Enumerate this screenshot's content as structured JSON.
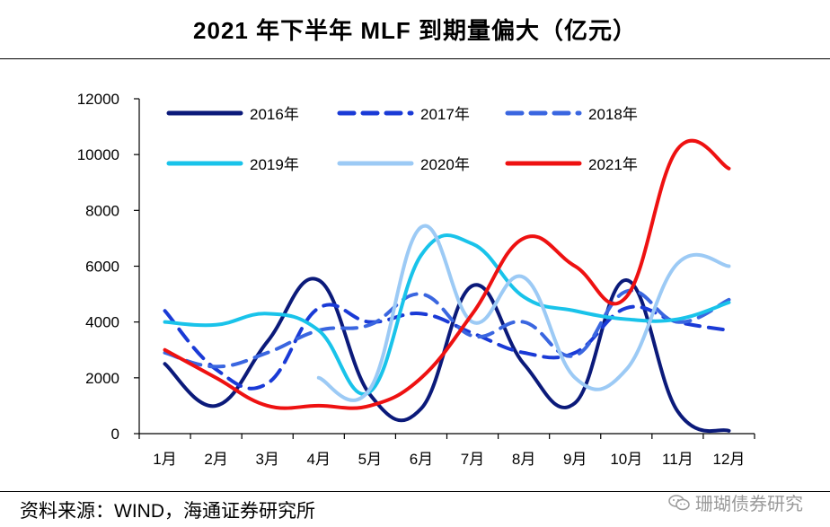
{
  "chart_data": {
    "type": "line",
    "title": "2021 年下半年 MLF 到期量偏大（亿元）",
    "xlabel": "",
    "ylabel": "",
    "categories": [
      "1月",
      "2月",
      "3月",
      "4月",
      "5月",
      "6月",
      "7月",
      "8月",
      "9月",
      "10月",
      "11月",
      "12月"
    ],
    "ylim": [
      0,
      12000
    ],
    "yticks": [
      0,
      2000,
      4000,
      6000,
      8000,
      10000,
      12000
    ],
    "grid": false,
    "legend_position": "top",
    "series": [
      {
        "name": "2016年",
        "color": "#0b1a7a",
        "dash": "solid",
        "values": [
          2500,
          1000,
          3300,
          5500,
          1400,
          900,
          5300,
          2500,
          1100,
          5500,
          800,
          100
        ]
      },
      {
        "name": "2017年",
        "color": "#1a3ad6",
        "dash": "dash",
        "values": [
          4400,
          2300,
          1800,
          4500,
          4000,
          4300,
          3600,
          2900,
          2900,
          4500,
          4000,
          3700
        ]
      },
      {
        "name": "2018年",
        "color": "#3a66e0",
        "dash": "dash",
        "values": [
          2900,
          2400,
          2900,
          3700,
          3900,
          5000,
          3500,
          4000,
          2800,
          5100,
          4000,
          4800
        ]
      },
      {
        "name": "2019年",
        "color": "#19c3ea",
        "dash": "solid",
        "values": [
          4000,
          3900,
          4300,
          3700,
          1500,
          6400,
          6800,
          4900,
          4400,
          4100,
          4100,
          4700
        ]
      },
      {
        "name": "2020年",
        "color": "#9ccaf5",
        "dash": "solid",
        "values": [
          null,
          null,
          null,
          2000,
          1600,
          7400,
          4000,
          5600,
          2000,
          2300,
          6100,
          6000
        ]
      },
      {
        "name": "2021年",
        "color": "#ee1111",
        "dash": "solid",
        "values": [
          3000,
          2000,
          1000,
          1000,
          1000,
          2000,
          4300,
          7000,
          6000,
          4900,
          10200,
          9500
        ]
      }
    ]
  },
  "footer": {
    "source": "资料来源：WIND，海通证券研究所",
    "watermark": "珊瑚债券研究",
    "watermark_icon": "wechat-icon"
  }
}
